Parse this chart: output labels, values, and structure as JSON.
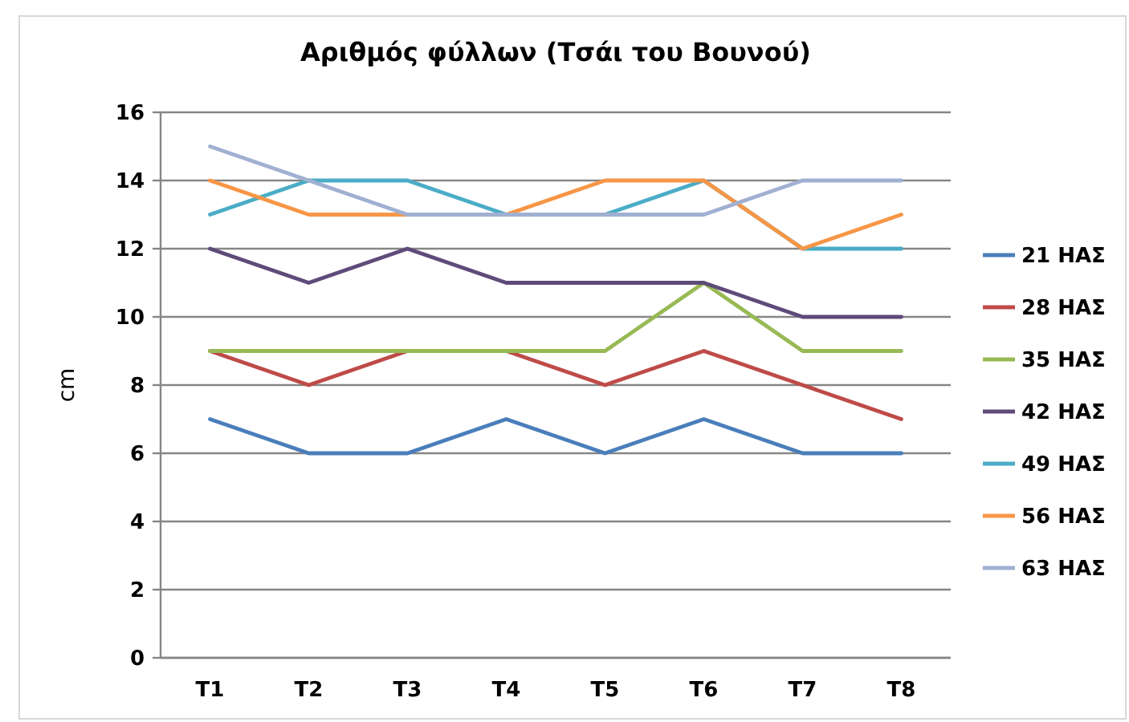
{
  "chart_data": {
    "type": "line",
    "title": "Αριθμός φύλλων (Τσάι του Βουνού)",
    "ylabel": "cm",
    "categories": [
      "T1",
      "T2",
      "T3",
      "T4",
      "T5",
      "T6",
      "T7",
      "T8"
    ],
    "series": [
      {
        "name": "21 ΗΑΣ",
        "color": "#4a7ebb",
        "values": [
          7,
          6,
          6,
          7,
          6,
          7,
          6,
          6
        ]
      },
      {
        "name": "28 ΗΑΣ",
        "color": "#be4b48",
        "values": [
          9,
          8,
          9,
          9,
          8,
          9,
          8,
          7
        ]
      },
      {
        "name": "35 ΗΑΣ",
        "color": "#98b954",
        "values": [
          9,
          9,
          9,
          9,
          9,
          11,
          9,
          9
        ]
      },
      {
        "name": "42 ΗΑΣ",
        "color": "#5f4b7a",
        "values": [
          12,
          11,
          12,
          11,
          11,
          11,
          10,
          10
        ]
      },
      {
        "name": "49 ΗΑΣ",
        "color": "#4bacc6",
        "values": [
          13,
          14,
          14,
          13,
          13,
          14,
          12,
          12
        ]
      },
      {
        "name": "56 ΗΑΣ",
        "color": "#f79646",
        "values": [
          14,
          13,
          13,
          13,
          14,
          14,
          12,
          13
        ]
      },
      {
        "name": "63 ΗΑΣ",
        "color": "#a0b0d2",
        "values": [
          15,
          14,
          13,
          13,
          13,
          13,
          14,
          14
        ]
      }
    ],
    "ylim": [
      0,
      16
    ],
    "yticks": [
      0,
      2,
      4,
      6,
      8,
      10,
      12,
      14,
      16
    ],
    "grid": "y",
    "legend": "right"
  }
}
